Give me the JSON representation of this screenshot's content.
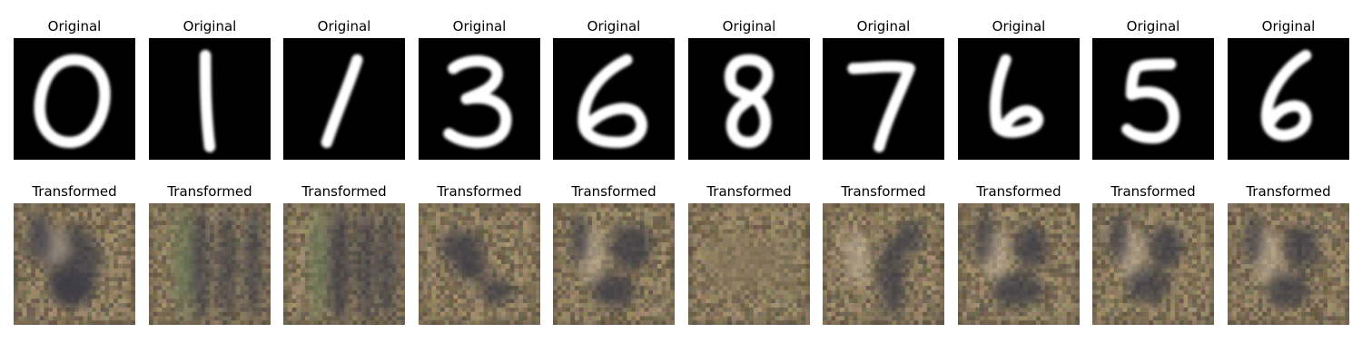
{
  "figure": {
    "rows": [
      {
        "name": "original",
        "panels": [
          {
            "title": "Original",
            "digit": "0"
          },
          {
            "title": "Original",
            "digit": "1"
          },
          {
            "title": "Original",
            "digit": "1"
          },
          {
            "title": "Original",
            "digit": "3"
          },
          {
            "title": "Original",
            "digit": "6"
          },
          {
            "title": "Original",
            "digit": "8"
          },
          {
            "title": "Original",
            "digit": "7"
          },
          {
            "title": "Original",
            "digit": "6"
          },
          {
            "title": "Original",
            "digit": "5"
          },
          {
            "title": "Original",
            "digit": "6"
          }
        ]
      },
      {
        "name": "transformed",
        "panels": [
          {
            "title": "Transformed"
          },
          {
            "title": "Transformed"
          },
          {
            "title": "Transformed"
          },
          {
            "title": "Transformed"
          },
          {
            "title": "Transformed"
          },
          {
            "title": "Transformed"
          },
          {
            "title": "Transformed"
          },
          {
            "title": "Transformed"
          },
          {
            "title": "Transformed"
          },
          {
            "title": "Transformed"
          }
        ]
      }
    ],
    "colors": {
      "original_background": "#000000",
      "original_stroke": "#ffffff",
      "transformed_base": "#8a7a5e",
      "transformed_dark": "#3a3a44",
      "transformed_light": "#c8b8a0"
    }
  }
}
